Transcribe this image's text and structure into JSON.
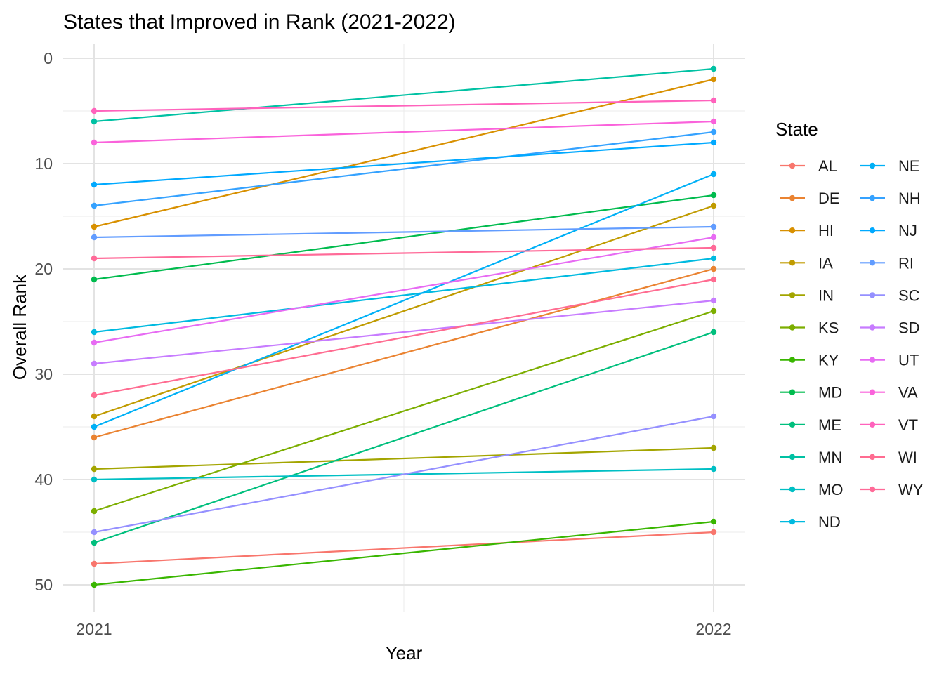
{
  "chart_data": {
    "type": "line",
    "title": "States that Improved in Rank (2021-2022)",
    "xlabel": "Year",
    "ylabel": "Overall Rank",
    "x": [
      "2021",
      "2022"
    ],
    "y_reversed": true,
    "ylim": [
      0,
      50
    ],
    "y_ticks": [
      0,
      10,
      20,
      30,
      40,
      50
    ],
    "grid": true,
    "legend_title": "State",
    "legend_position": "right",
    "series": [
      {
        "name": "AL",
        "color": "#F8766D",
        "values": [
          48,
          45
        ]
      },
      {
        "name": "DE",
        "color": "#EA8331",
        "values": [
          36,
          20
        ]
      },
      {
        "name": "HI",
        "color": "#D89000",
        "values": [
          16,
          2
        ]
      },
      {
        "name": "IA",
        "color": "#C09B00",
        "values": [
          34,
          14
        ]
      },
      {
        "name": "IN",
        "color": "#A3A500",
        "values": [
          39,
          37
        ]
      },
      {
        "name": "KS",
        "color": "#7CAE00",
        "values": [
          43,
          24
        ]
      },
      {
        "name": "KY",
        "color": "#39B600",
        "values": [
          50,
          44
        ]
      },
      {
        "name": "MD",
        "color": "#00BB4E",
        "values": [
          21,
          13
        ]
      },
      {
        "name": "ME",
        "color": "#00BF7D",
        "values": [
          46,
          26
        ]
      },
      {
        "name": "MN",
        "color": "#00C1A3",
        "values": [
          6,
          1
        ]
      },
      {
        "name": "MO",
        "color": "#00BFC4",
        "values": [
          40,
          39
        ]
      },
      {
        "name": "ND",
        "color": "#00BAE0",
        "values": [
          26,
          19
        ]
      },
      {
        "name": "NE",
        "color": "#00B0F6",
        "values": [
          35,
          11
        ]
      },
      {
        "name": "NH",
        "color": "#35A2FF",
        "values": [
          14,
          7
        ]
      },
      {
        "name": "NJ",
        "color": "#00A9FF",
        "values": [
          12,
          8
        ]
      },
      {
        "name": "RI",
        "color": "#619CFF",
        "values": [
          17,
          16
        ]
      },
      {
        "name": "SC",
        "color": "#9590FF",
        "values": [
          45,
          34
        ]
      },
      {
        "name": "SD",
        "color": "#C77CFF",
        "values": [
          29,
          23
        ]
      },
      {
        "name": "UT",
        "color": "#E76BF3",
        "values": [
          27,
          17
        ]
      },
      {
        "name": "VA",
        "color": "#FA62DB",
        "values": [
          8,
          6
        ]
      },
      {
        "name": "VT",
        "color": "#FF62BC",
        "values": [
          5,
          4
        ]
      },
      {
        "name": "WI",
        "color": "#FF6C91",
        "values": [
          32,
          21
        ]
      },
      {
        "name": "WY",
        "color": "#FF6A98",
        "values": [
          19,
          18
        ]
      }
    ]
  }
}
